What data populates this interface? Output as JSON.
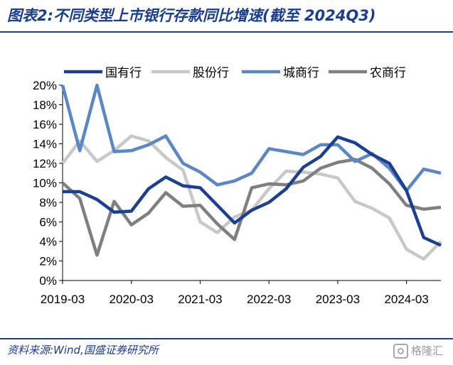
{
  "title": "图表2:不同类型上市银行存款同比增速(截至 2024Q3)",
  "source": "资料来源:Wind,国盛证券研究所",
  "watermark": "格隆汇",
  "chart_data": {
    "type": "line",
    "y_tick_labels": [
      "0%",
      "2%",
      "4%",
      "6%",
      "8%",
      "10%",
      "12%",
      "14%",
      "16%",
      "18%",
      "20%"
    ],
    "x_tick_labels": [
      "2019-03",
      "2020-03",
      "2021-03",
      "2022-03",
      "2023-03",
      "2024-03"
    ],
    "ylim": [
      0,
      20
    ],
    "grid": false,
    "legend_position": "top",
    "x": [
      "2019-03",
      "2019-06",
      "2019-09",
      "2019-12",
      "2020-03",
      "2020-06",
      "2020-09",
      "2020-12",
      "2021-03",
      "2021-06",
      "2021-09",
      "2021-12",
      "2022-03",
      "2022-06",
      "2022-09",
      "2022-12",
      "2023-03",
      "2023-06",
      "2023-09",
      "2023-12",
      "2024-03",
      "2024-06",
      "2024-09"
    ],
    "series": [
      {
        "name": "国有行",
        "color": "#1c3f94",
        "values": [
          9.1,
          9.1,
          8.3,
          7.0,
          7.1,
          9.4,
          10.6,
          9.7,
          9.5,
          7.7,
          5.9,
          7.2,
          8.0,
          9.4,
          11.6,
          12.7,
          14.7,
          14.1,
          12.9,
          12.0,
          9.2,
          4.4,
          3.6
        ]
      },
      {
        "name": "股份行",
        "color": "#c8c8c8",
        "values": [
          12.0,
          14.3,
          12.2,
          13.3,
          14.8,
          14.3,
          12.6,
          11.3,
          6.0,
          4.9,
          6.5,
          7.2,
          9.4,
          11.2,
          11.1,
          10.9,
          10.5,
          8.1,
          7.4,
          6.4,
          3.2,
          2.2,
          4.0
        ]
      },
      {
        "name": "城商行",
        "color": "#5a87c5",
        "values": [
          20.0,
          13.3,
          20.0,
          13.2,
          13.3,
          13.9,
          14.8,
          12.0,
          11.1,
          9.8,
          10.2,
          11.0,
          13.5,
          13.2,
          12.9,
          13.9,
          13.9,
          12.2,
          13.0,
          11.5,
          9.2,
          11.4,
          11.0
        ]
      },
      {
        "name": "农商行",
        "color": "#7f7f7f",
        "values": [
          10.0,
          8.4,
          2.6,
          8.1,
          5.7,
          6.9,
          9.0,
          7.6,
          7.7,
          5.8,
          4.2,
          9.5,
          9.9,
          9.8,
          10.2,
          11.5,
          12.1,
          12.4,
          11.5,
          9.9,
          7.7,
          7.3,
          7.5
        ]
      }
    ]
  }
}
